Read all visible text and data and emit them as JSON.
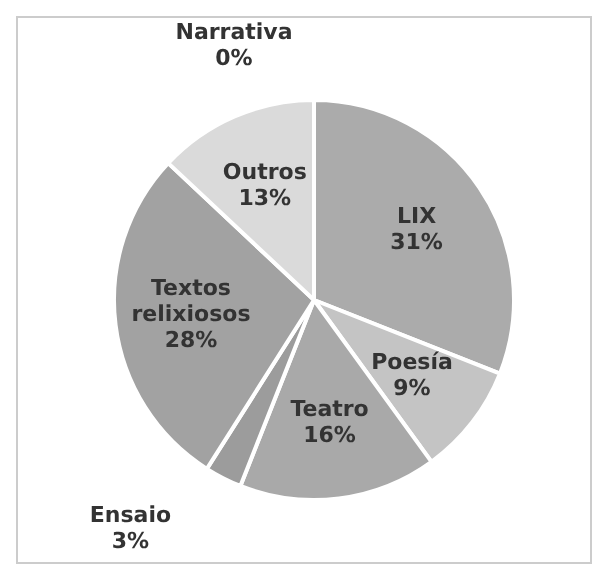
{
  "chart_data": {
    "type": "pie",
    "categories": [
      "LIX",
      "Poesía",
      "Teatro",
      "Ensaio",
      "Textos relixiosos",
      "Outros",
      "Narrativa"
    ],
    "values": [
      31,
      9,
      16,
      3,
      28,
      13,
      0
    ],
    "colors": [
      "#ababab",
      "#c4c4c4",
      "#a9a9a9",
      "#9c9c9c",
      "#a2a2a2",
      "#dadada",
      "#e6e6e6"
    ],
    "value_labels": [
      "31%",
      "9%",
      "16%",
      "3%",
      "28%",
      "13%",
      "0%"
    ],
    "legend": false
  }
}
